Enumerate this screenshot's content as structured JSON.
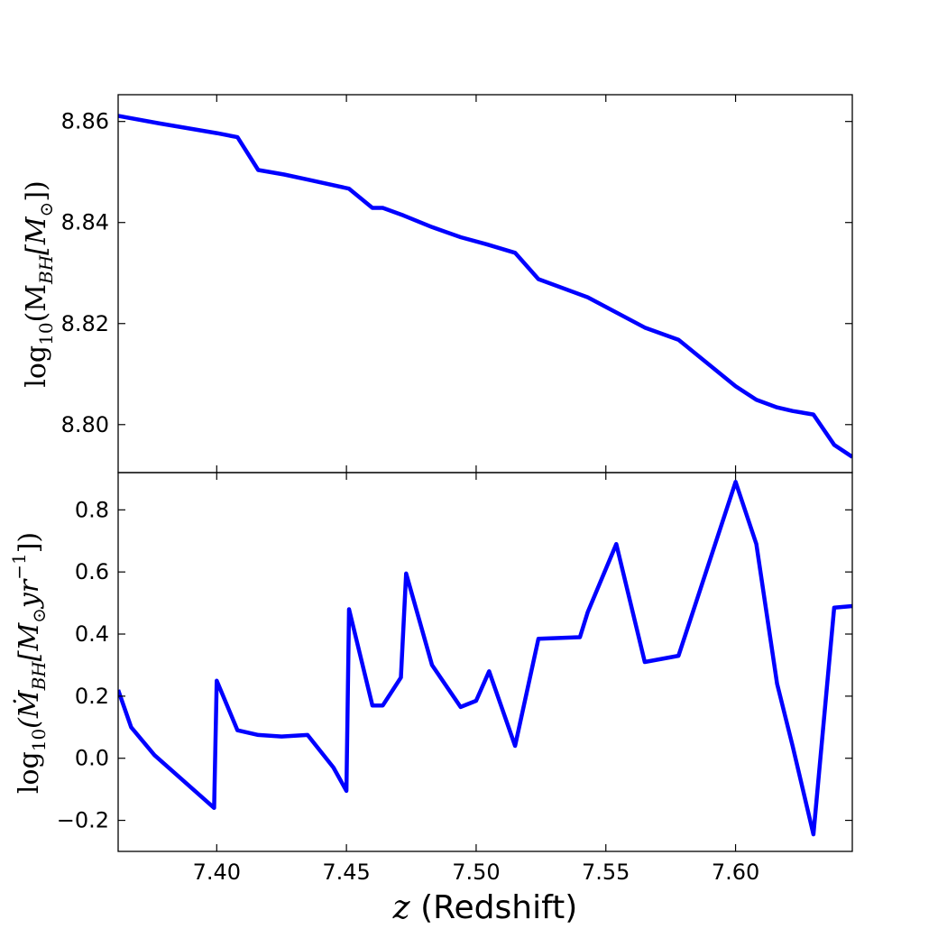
{
  "chart_data": [
    {
      "type": "line",
      "panel": "top",
      "ylabel_parts": {
        "base": "log",
        "sub": "10",
        "rest": "(M",
        "msub": "BH",
        "tail": "[M",
        "sun": "⊙",
        "end": "])"
      },
      "xlim": [
        7.362,
        7.645
      ],
      "ylim": [
        8.7905,
        8.8653
      ],
      "yticks": [
        8.8,
        8.82,
        8.84,
        8.86
      ],
      "ytick_labels": [
        "8.80",
        "8.82",
        "8.84",
        "8.86"
      ],
      "color": "#0000ff",
      "series": [
        {
          "x": [
            7.362,
            7.378,
            7.4,
            7.408,
            7.416,
            7.426,
            7.436,
            7.451,
            7.46,
            7.464,
            7.472,
            7.483,
            7.494,
            7.504,
            7.515,
            7.524,
            7.543,
            7.565,
            7.578,
            7.6,
            7.608,
            7.616,
            7.622,
            7.63,
            7.638,
            7.645
          ],
          "y": [
            8.8611,
            8.8596,
            8.8577,
            8.8569,
            8.8504,
            8.8495,
            8.8484,
            8.8467,
            8.8429,
            8.8429,
            8.8414,
            8.8391,
            8.8371,
            8.8357,
            8.834,
            8.8288,
            8.8252,
            8.8192,
            8.8168,
            8.8076,
            8.8049,
            8.8034,
            8.8027,
            8.802,
            8.796,
            8.7936
          ]
        }
      ]
    },
    {
      "type": "line",
      "panel": "bottom",
      "ylabel_parts": {
        "base": "log",
        "sub": "10",
        "rest": "(Ṁ",
        "msub": "BH",
        "tail": "[M",
        "sun": "⊙",
        "unit": "yr",
        "sup": "−1",
        "end": "])"
      },
      "xlim": [
        7.362,
        7.645
      ],
      "ylim": [
        -0.3,
        0.92
      ],
      "yticks": [
        -0.2,
        0.0,
        0.2,
        0.4,
        0.6,
        0.8
      ],
      "ytick_labels": [
        "−0.2",
        "0.0",
        "0.2",
        "0.4",
        "0.6",
        "0.8"
      ],
      "xticks": [
        7.4,
        7.45,
        7.5,
        7.55,
        7.6
      ],
      "xtick_labels": [
        "7.40",
        "7.45",
        "7.50",
        "7.55",
        "7.60"
      ],
      "xlabel_italic": "z",
      "xlabel_rest": " (Redshift)",
      "color": "#0000ff",
      "series": [
        {
          "x": [
            7.362,
            7.367,
            7.376,
            7.399,
            7.4,
            7.408,
            7.416,
            7.425,
            7.435,
            7.445,
            7.45,
            7.451,
            7.46,
            7.464,
            7.471,
            7.473,
            7.483,
            7.494,
            7.5,
            7.505,
            7.515,
            7.524,
            7.54,
            7.543,
            7.554,
            7.565,
            7.578,
            7.6,
            7.608,
            7.616,
            7.622,
            7.63,
            7.638,
            7.645
          ],
          "y": [
            0.22,
            0.1,
            0.01,
            -0.16,
            0.25,
            0.09,
            0.075,
            0.07,
            0.075,
            -0.03,
            -0.105,
            0.48,
            0.17,
            0.17,
            0.26,
            0.595,
            0.3,
            0.165,
            0.185,
            0.28,
            0.04,
            0.385,
            0.39,
            0.47,
            0.69,
            0.31,
            0.33,
            0.89,
            0.69,
            0.24,
            0.04,
            -0.245,
            0.485,
            0.49
          ]
        }
      ]
    }
  ]
}
